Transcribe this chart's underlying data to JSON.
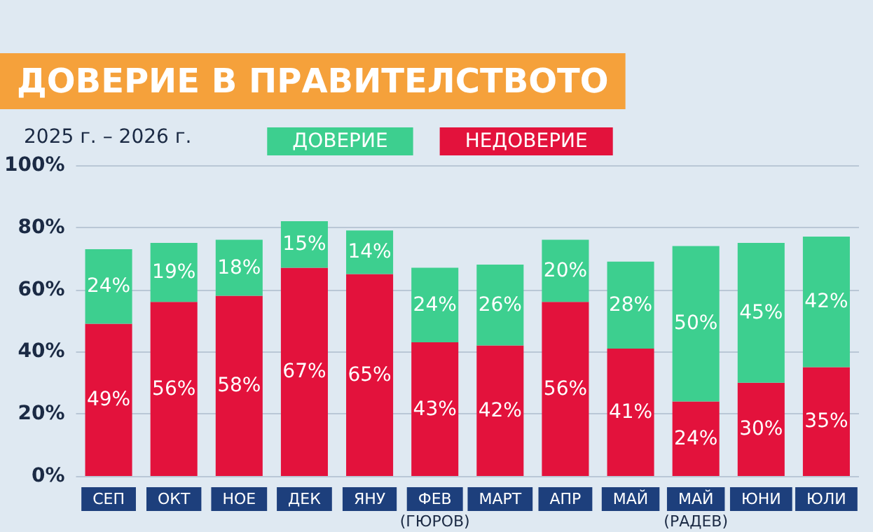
{
  "chart_data": {
    "type": "bar",
    "title": "ДОВЕРИЕ В ПРАВИТЕЛСТВОТО",
    "subtitle": "2025 г. – 2026 г.",
    "categories": [
      "СЕП",
      "ОКТ",
      "НОЕ",
      "ДЕК",
      "ЯНУ",
      "ФЕВ\n(ГЮРОВ)",
      "МАРТ",
      "АПР",
      "МАЙ",
      "МАЙ\n(РАДЕВ)",
      "ЮНИ",
      "ЮЛИ"
    ],
    "stacked": true,
    "series": [
      {
        "name": "НЕДОВЕРИЕ",
        "color": "#e3123c",
        "values": [
          49,
          56,
          58,
          67,
          65,
          43,
          42,
          56,
          41,
          24,
          30,
          35
        ],
        "value_labels": [
          "49%",
          "56%",
          "58%",
          "67%",
          "65%",
          "43%",
          "42%",
          "56%",
          "41%",
          "24%",
          "30%",
          "35%"
        ]
      },
      {
        "name": "ДОВЕРИЕ",
        "color": "#3dcf8f",
        "values": [
          24,
          19,
          18,
          15,
          14,
          24,
          26,
          20,
          28,
          50,
          45,
          42
        ],
        "value_labels": [
          "24%",
          "19%",
          "18%",
          "15%",
          "14%",
          "24%",
          "26%",
          "20%",
          "28%",
          "50%",
          "45%",
          "42%"
        ]
      }
    ],
    "ylim": [
      0,
      100
    ],
    "yticks": [
      {
        "value": 0,
        "label": "0%"
      },
      {
        "value": 20,
        "label": "20%"
      },
      {
        "value": 40,
        "label": "40%"
      },
      {
        "value": 60,
        "label": "60%"
      },
      {
        "value": 80,
        "label": "80%"
      },
      {
        "value": 100,
        "label": "100%"
      }
    ],
    "grid": "y",
    "legend": "top"
  }
}
